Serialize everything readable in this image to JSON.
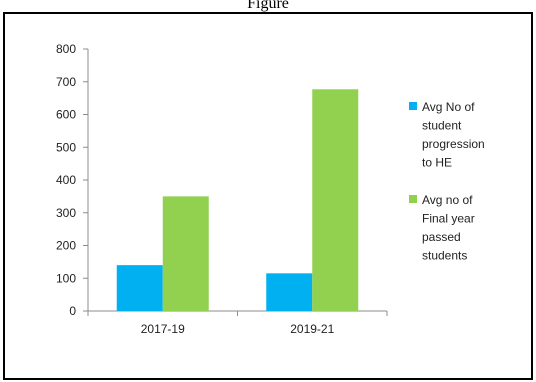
{
  "chart_data": {
    "type": "bar",
    "title": "Figure",
    "categories": [
      "2017-19",
      "2019-21"
    ],
    "series": [
      {
        "name": "Avg No of student progression to HE",
        "color": "#00B0F0",
        "values": [
          140,
          115
        ]
      },
      {
        "name": "Avg no of Final year passed students",
        "color": "#92D050",
        "values": [
          350,
          677
        ]
      }
    ],
    "ylim": [
      0,
      800
    ],
    "yticks": [
      0,
      100,
      200,
      300,
      400,
      500,
      600,
      700,
      800
    ],
    "xlabel": "",
    "ylabel": "",
    "grid": false,
    "legend_position": "right",
    "legend_lines": [
      [
        "Avg No of",
        "student",
        "progression",
        "to HE"
      ],
      [
        "Avg no of",
        "Final year",
        "passed",
        "students"
      ]
    ]
  }
}
